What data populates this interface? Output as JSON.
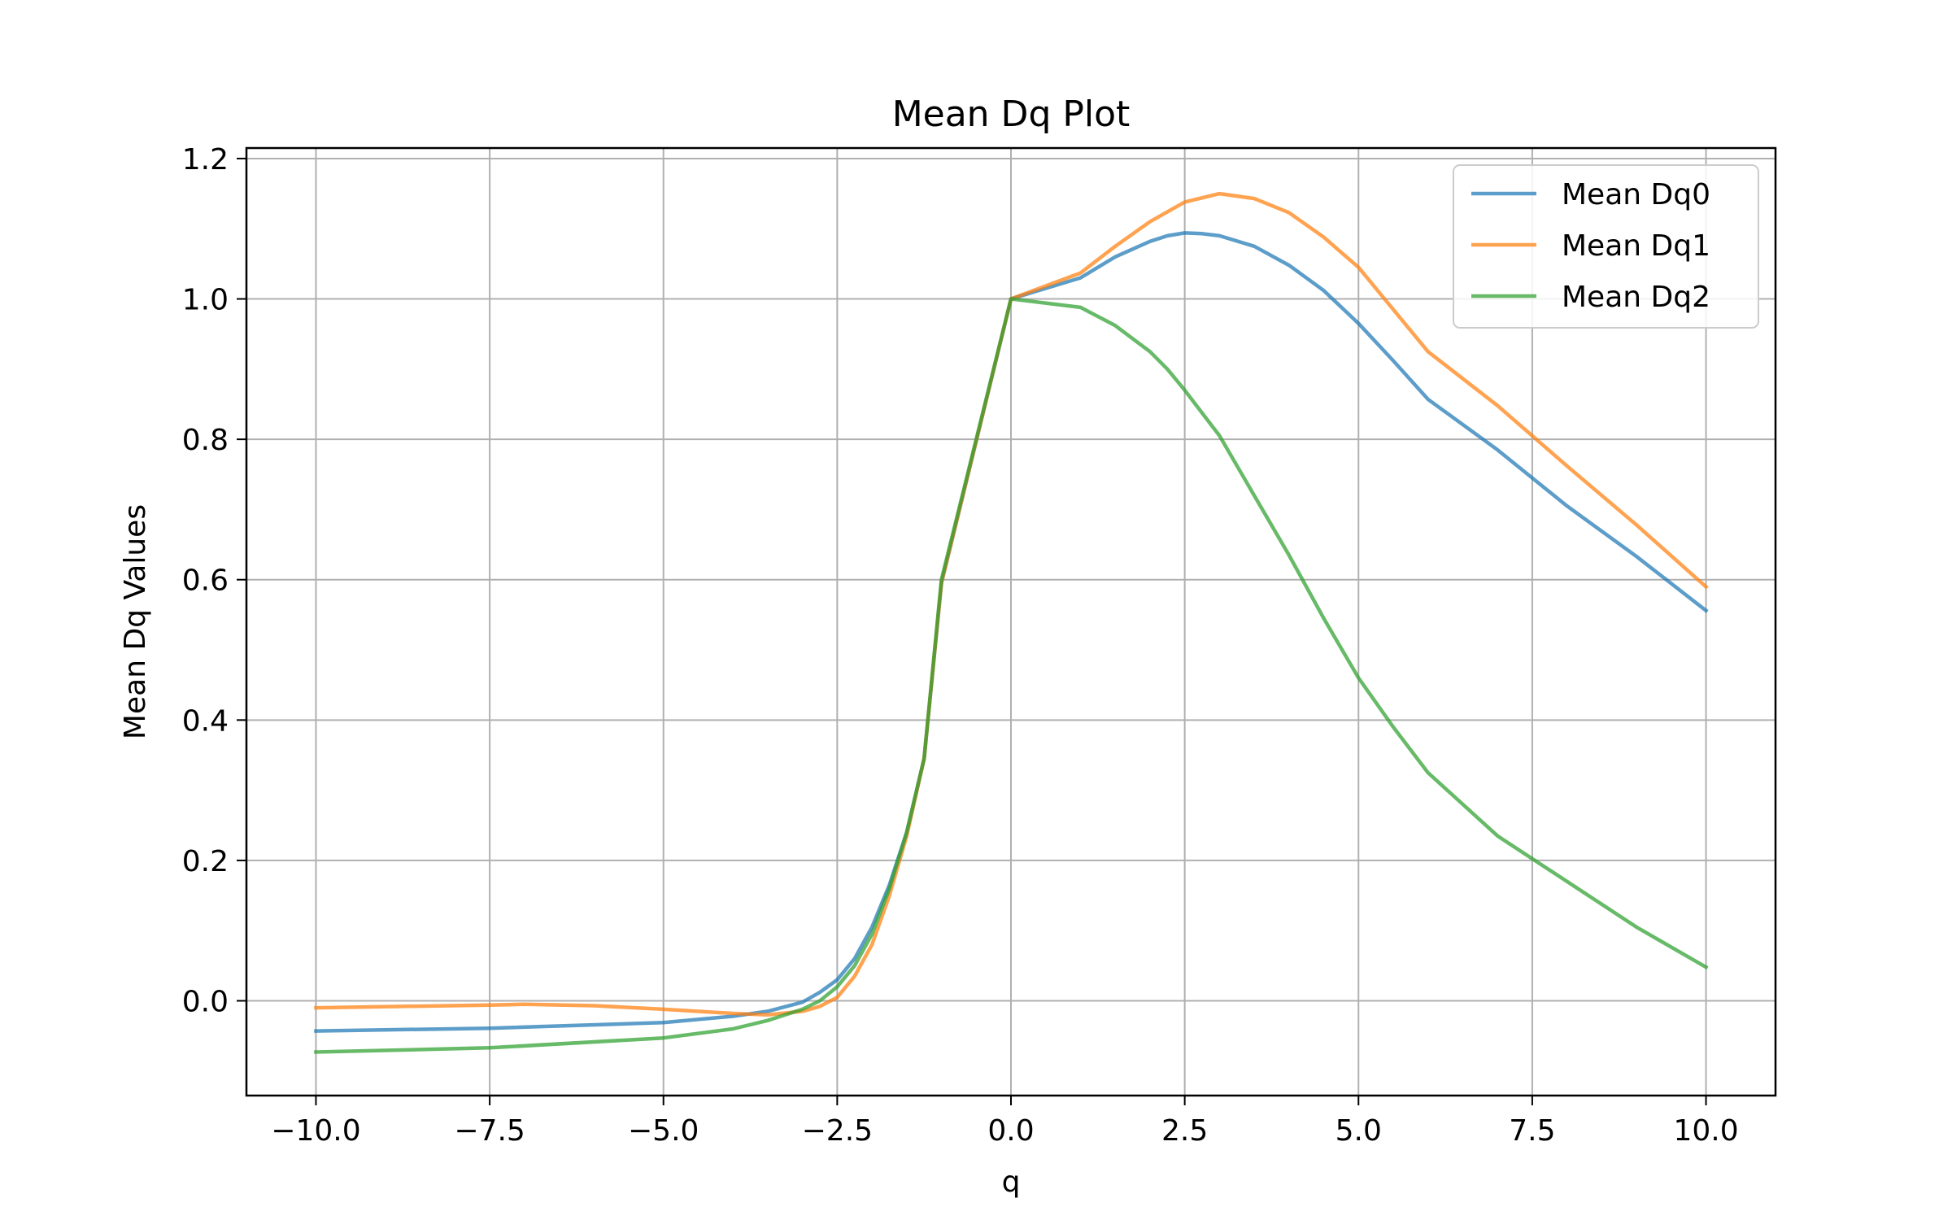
{
  "chart_data": {
    "type": "line",
    "title": "Mean Dq Plot",
    "xlabel": "q",
    "ylabel": "Mean Dq Values",
    "xlim": [
      -11.0,
      11.0
    ],
    "ylim": [
      -0.135,
      1.215
    ],
    "xticks": [
      -10.0,
      -7.5,
      -5.0,
      -2.5,
      0.0,
      2.5,
      5.0,
      7.5,
      10.0
    ],
    "xtick_labels": [
      "−10.0",
      "−7.5",
      "−5.0",
      "−2.5",
      "0.0",
      "2.5",
      "5.0",
      "7.5",
      "10.0"
    ],
    "yticks": [
      0.0,
      0.2,
      0.4,
      0.6,
      0.8,
      1.0,
      1.2
    ],
    "ytick_labels": [
      "0.0",
      "0.2",
      "0.4",
      "0.6",
      "0.8",
      "1.0",
      "1.2"
    ],
    "grid": true,
    "legend_position": "top-right",
    "series": [
      {
        "name": "Mean Dq0",
        "color": "#1f77b4",
        "x": [
          -10,
          -7.5,
          -5,
          -4,
          -3.5,
          -3,
          -2.75,
          -2.5,
          -2.25,
          -2,
          -1.75,
          -1.5,
          -1.25,
          -1,
          0,
          1,
          1.5,
          2,
          2.25,
          2.5,
          2.75,
          3,
          3.5,
          4,
          4.5,
          5,
          5.5,
          6,
          7,
          8,
          9,
          10
        ],
        "y": [
          -0.043,
          -0.039,
          -0.031,
          -0.022,
          -0.015,
          -0.002,
          0.012,
          0.03,
          0.06,
          0.105,
          0.165,
          0.24,
          0.345,
          0.595,
          1.0,
          1.03,
          1.06,
          1.082,
          1.09,
          1.094,
          1.093,
          1.09,
          1.075,
          1.048,
          1.012,
          0.965,
          0.912,
          0.857,
          0.785,
          0.705,
          0.633,
          0.556
        ]
      },
      {
        "name": "Mean Dq1",
        "color": "#ff7f0e",
        "x": [
          -10,
          -7.5,
          -7,
          -6,
          -5,
          -4,
          -3.5,
          -3,
          -2.75,
          -2.5,
          -2.25,
          -2,
          -1.75,
          -1.5,
          -1.25,
          -1,
          0,
          1,
          1.5,
          2,
          2.5,
          3,
          3.5,
          4,
          4.5,
          5,
          5.5,
          6,
          7,
          8,
          9,
          10
        ],
        "y": [
          -0.01,
          -0.006,
          -0.005,
          -0.007,
          -0.012,
          -0.018,
          -0.02,
          -0.015,
          -0.008,
          0.005,
          0.035,
          0.08,
          0.15,
          0.235,
          0.345,
          0.595,
          1.0,
          1.037,
          1.075,
          1.11,
          1.138,
          1.15,
          1.143,
          1.123,
          1.088,
          1.045,
          0.985,
          0.925,
          0.848,
          0.762,
          0.678,
          0.59
        ]
      },
      {
        "name": "Mean Dq2",
        "color": "#2ca02c",
        "x": [
          -10,
          -7.5,
          -5,
          -4,
          -3.5,
          -3,
          -2.75,
          -2.5,
          -2.25,
          -2,
          -1.75,
          -1.5,
          -1.25,
          -1,
          0,
          1,
          1.5,
          2,
          2.25,
          2.5,
          3,
          3.5,
          4,
          4.5,
          5,
          5.5,
          6,
          7,
          8,
          9,
          10
        ],
        "y": [
          -0.073,
          -0.067,
          -0.053,
          -0.04,
          -0.028,
          -0.012,
          0.0,
          0.02,
          0.05,
          0.095,
          0.16,
          0.24,
          0.345,
          0.6,
          1.0,
          0.988,
          0.962,
          0.925,
          0.9,
          0.87,
          0.805,
          0.72,
          0.635,
          0.545,
          0.46,
          0.39,
          0.325,
          0.235,
          0.17,
          0.105,
          0.048
        ]
      }
    ]
  }
}
